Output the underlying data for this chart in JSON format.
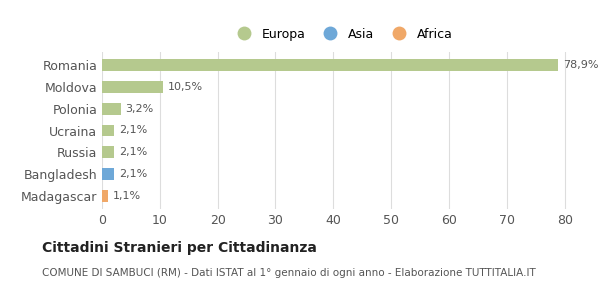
{
  "categories": [
    "Romania",
    "Moldova",
    "Polonia",
    "Ucraina",
    "Russia",
    "Bangladesh",
    "Madagascar"
  ],
  "values": [
    78.9,
    10.5,
    3.2,
    2.1,
    2.1,
    2.1,
    1.1
  ],
  "labels": [
    "78,9%",
    "10,5%",
    "3,2%",
    "2,1%",
    "2,1%",
    "2,1%",
    "1,1%"
  ],
  "colors": [
    "#b5c98e",
    "#b5c98e",
    "#b5c98e",
    "#b5c98e",
    "#b5c98e",
    "#6ea8d8",
    "#f0a868"
  ],
  "legend": [
    {
      "label": "Europa",
      "color": "#b5c98e"
    },
    {
      "label": "Asia",
      "color": "#6ea8d8"
    },
    {
      "label": "Africa",
      "color": "#f0a868"
    }
  ],
  "xlim": [
    0,
    83
  ],
  "xticks": [
    0,
    10,
    20,
    30,
    40,
    50,
    60,
    70,
    80
  ],
  "title": "Cittadini Stranieri per Cittadinanza",
  "subtitle": "COMUNE DI SAMBUCI (RM) - Dati ISTAT al 1° gennaio di ogni anno - Elaborazione TUTTITALIA.IT",
  "bg_color": "#ffffff",
  "grid_color": "#dddddd",
  "bar_height": 0.55
}
